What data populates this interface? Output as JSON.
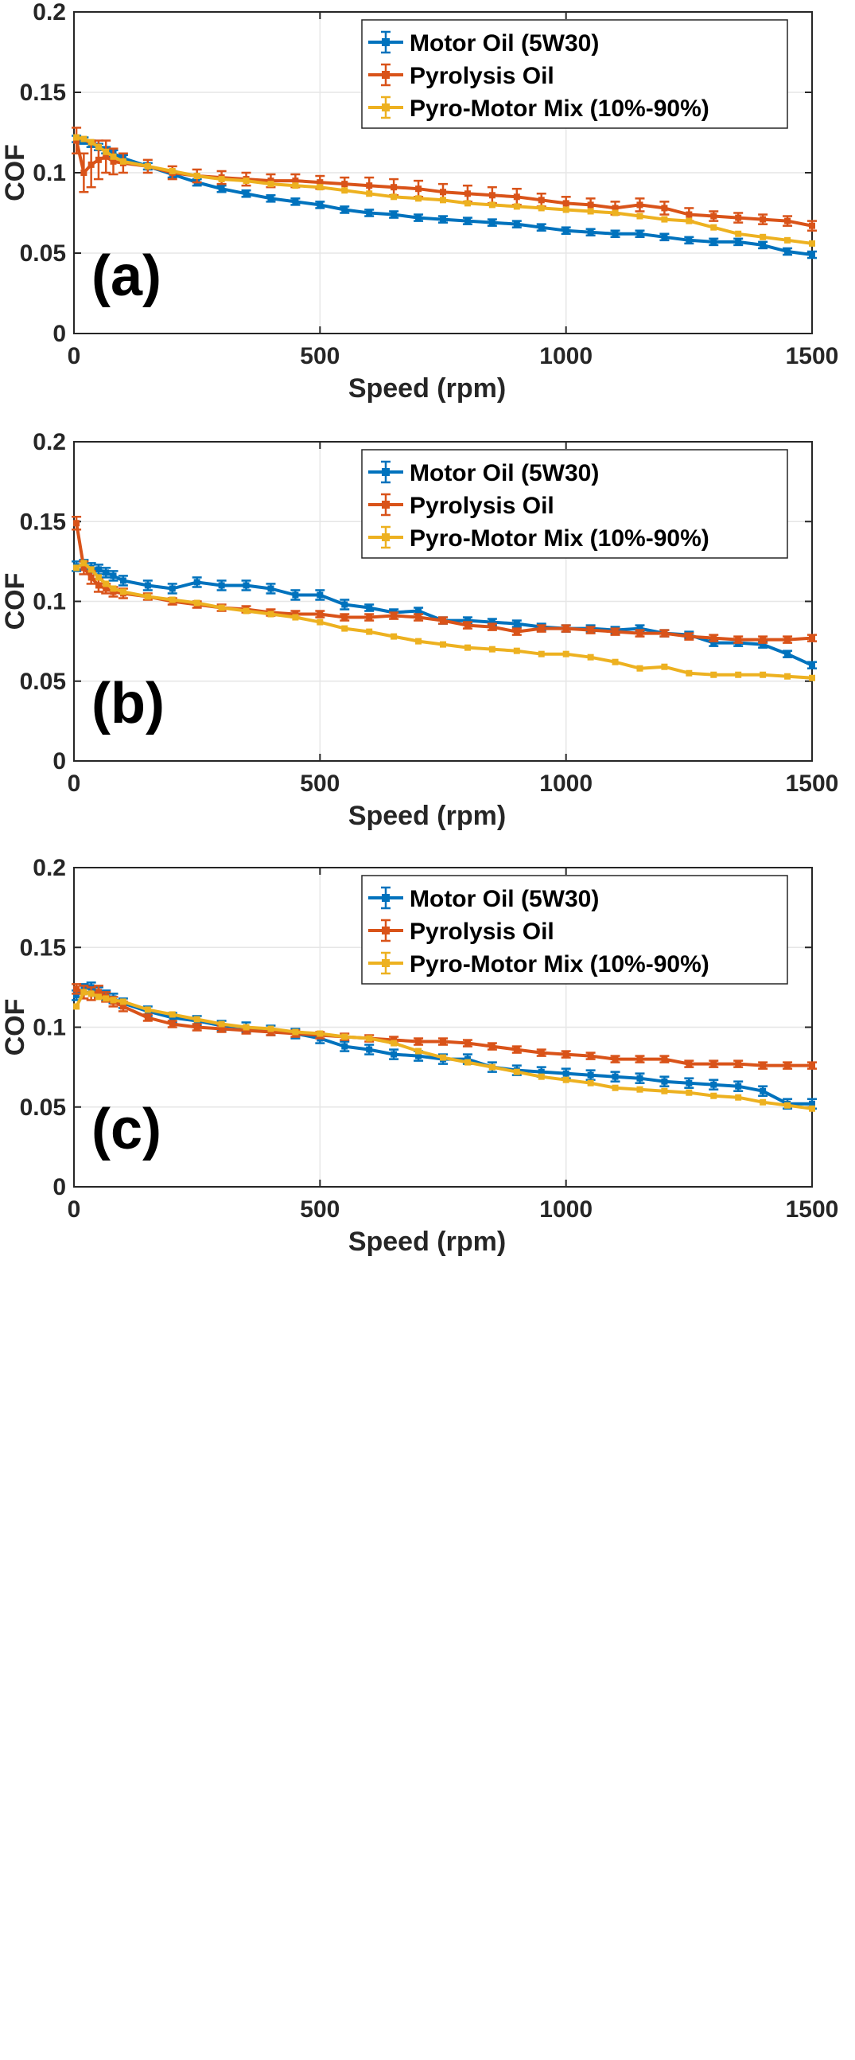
{
  "chart_data": [
    {
      "type": "line",
      "annotation": "(a)",
      "xlabel": "Speed (rpm)",
      "ylabel": "COF",
      "xlim": [
        0,
        1500
      ],
      "ylim": [
        0,
        0.2
      ],
      "xticks": [
        0,
        500,
        1000,
        1500
      ],
      "yticks": [
        0,
        0.05,
        0.1,
        0.15,
        0.2
      ],
      "grid": true,
      "legend_position": "top-right",
      "x": [
        5,
        20,
        35,
        50,
        65,
        80,
        100,
        150,
        200,
        250,
        300,
        350,
        400,
        450,
        500,
        550,
        600,
        650,
        700,
        750,
        800,
        850,
        900,
        950,
        1000,
        1050,
        1100,
        1150,
        1200,
        1250,
        1300,
        1350,
        1400,
        1450,
        1500
      ],
      "series": [
        {
          "name": "Motor Oil (5W30)",
          "color": "#0072BD",
          "values": [
            0.121,
            0.12,
            0.118,
            0.116,
            0.114,
            0.112,
            0.109,
            0.104,
            0.099,
            0.094,
            0.09,
            0.087,
            0.084,
            0.082,
            0.08,
            0.077,
            0.075,
            0.074,
            0.072,
            0.071,
            0.07,
            0.069,
            0.068,
            0.066,
            0.064,
            0.063,
            0.062,
            0.062,
            0.06,
            0.058,
            0.057,
            0.057,
            0.055,
            0.051,
            0.049
          ],
          "errors": [
            0.002,
            0.002,
            0.002,
            0.002,
            0.002,
            0.002,
            0.002,
            0.002,
            0.002,
            0.002,
            0.002,
            0.002,
            0.002,
            0.002,
            0.002,
            0.002,
            0.002,
            0.002,
            0.002,
            0.002,
            0.002,
            0.002,
            0.002,
            0.002,
            0.002,
            0.002,
            0.002,
            0.002,
            0.002,
            0.002,
            0.002,
            0.002,
            0.002,
            0.002,
            0.002
          ]
        },
        {
          "name": "Pyrolysis Oil",
          "color": "#D95319",
          "values": [
            0.12,
            0.1,
            0.105,
            0.108,
            0.11,
            0.107,
            0.106,
            0.104,
            0.1,
            0.098,
            0.097,
            0.096,
            0.095,
            0.095,
            0.094,
            0.093,
            0.092,
            0.091,
            0.09,
            0.088,
            0.087,
            0.086,
            0.085,
            0.083,
            0.081,
            0.08,
            0.078,
            0.08,
            0.078,
            0.074,
            0.073,
            0.072,
            0.071,
            0.07,
            0.067
          ],
          "errors": [
            0.008,
            0.012,
            0.014,
            0.012,
            0.01,
            0.008,
            0.006,
            0.004,
            0.004,
            0.004,
            0.004,
            0.004,
            0.004,
            0.004,
            0.004,
            0.004,
            0.005,
            0.005,
            0.005,
            0.005,
            0.005,
            0.005,
            0.005,
            0.004,
            0.004,
            0.004,
            0.004,
            0.004,
            0.004,
            0.004,
            0.003,
            0.003,
            0.003,
            0.003,
            0.003
          ]
        },
        {
          "name": "Pyro-Motor Mix (10%-90%)",
          "color": "#EDB120",
          "values": [
            0.122,
            0.121,
            0.119,
            0.116,
            0.113,
            0.11,
            0.107,
            0.104,
            0.101,
            0.098,
            0.096,
            0.095,
            0.093,
            0.092,
            0.091,
            0.089,
            0.087,
            0.085,
            0.084,
            0.083,
            0.081,
            0.08,
            0.079,
            0.078,
            0.077,
            0.076,
            0.075,
            0.073,
            0.071,
            0.07,
            0.066,
            0.062,
            0.06,
            0.058,
            0.056
          ]
        }
      ]
    },
    {
      "type": "line",
      "annotation": "(b)",
      "xlabel": "Speed (rpm)",
      "ylabel": "COF",
      "xlim": [
        0,
        1500
      ],
      "ylim": [
        0,
        0.2
      ],
      "xticks": [
        0,
        500,
        1000,
        1500
      ],
      "yticks": [
        0,
        0.05,
        0.1,
        0.15,
        0.2
      ],
      "grid": true,
      "legend_position": "top-right",
      "x": [
        5,
        20,
        35,
        50,
        65,
        80,
        100,
        150,
        200,
        250,
        300,
        350,
        400,
        450,
        500,
        550,
        600,
        650,
        700,
        750,
        800,
        850,
        900,
        950,
        1000,
        1050,
        1100,
        1150,
        1200,
        1250,
        1300,
        1350,
        1400,
        1450,
        1500
      ],
      "series": [
        {
          "name": "Motor Oil (5W30)",
          "color": "#0072BD",
          "values": [
            0.122,
            0.123,
            0.121,
            0.12,
            0.118,
            0.116,
            0.113,
            0.11,
            0.108,
            0.112,
            0.11,
            0.11,
            0.108,
            0.104,
            0.104,
            0.098,
            0.096,
            0.093,
            0.094,
            0.088,
            0.088,
            0.087,
            0.086,
            0.084,
            0.083,
            0.083,
            0.082,
            0.083,
            0.08,
            0.079,
            0.074,
            0.074,
            0.073,
            0.067,
            0.06
          ],
          "errors": [
            0.003,
            0.003,
            0.003,
            0.003,
            0.003,
            0.003,
            0.003,
            0.003,
            0.003,
            0.003,
            0.003,
            0.003,
            0.003,
            0.003,
            0.003,
            0.003,
            0.002,
            0.002,
            0.002,
            0.002,
            0.002,
            0.002,
            0.002,
            0.002,
            0.002,
            0.002,
            0.002,
            0.002,
            0.002,
            0.002,
            0.002,
            0.002,
            0.002,
            0.002,
            0.002
          ]
        },
        {
          "name": "Pyrolysis Oil",
          "color": "#D95319",
          "values": [
            0.149,
            0.121,
            0.115,
            0.11,
            0.108,
            0.106,
            0.105,
            0.103,
            0.1,
            0.098,
            0.096,
            0.095,
            0.093,
            0.092,
            0.092,
            0.09,
            0.09,
            0.091,
            0.09,
            0.088,
            0.085,
            0.084,
            0.081,
            0.083,
            0.083,
            0.082,
            0.081,
            0.08,
            0.08,
            0.078,
            0.077,
            0.076,
            0.076,
            0.076,
            0.077
          ],
          "errors": [
            0.004,
            0.004,
            0.004,
            0.004,
            0.003,
            0.003,
            0.003,
            0.002,
            0.002,
            0.002,
            0.002,
            0.002,
            0.002,
            0.002,
            0.002,
            0.002,
            0.002,
            0.002,
            0.002,
            0.002,
            0.002,
            0.002,
            0.002,
            0.002,
            0.002,
            0.002,
            0.002,
            0.002,
            0.002,
            0.002,
            0.002,
            0.002,
            0.002,
            0.002,
            0.002
          ]
        },
        {
          "name": "Pyro-Motor Mix (10%-90%)",
          "color": "#EDB120",
          "values": [
            0.121,
            0.124,
            0.12,
            0.115,
            0.111,
            0.108,
            0.106,
            0.103,
            0.101,
            0.099,
            0.096,
            0.094,
            0.092,
            0.09,
            0.087,
            0.083,
            0.081,
            0.078,
            0.075,
            0.073,
            0.071,
            0.07,
            0.069,
            0.067,
            0.067,
            0.065,
            0.062,
            0.058,
            0.059,
            0.055,
            0.054,
            0.054,
            0.054,
            0.053,
            0.052
          ]
        }
      ]
    },
    {
      "type": "line",
      "annotation": "(c)",
      "xlabel": "Speed (rpm)",
      "ylabel": "COF",
      "xlim": [
        0,
        1500
      ],
      "ylim": [
        0,
        0.2
      ],
      "xticks": [
        0,
        500,
        1000,
        1500
      ],
      "yticks": [
        0,
        0.05,
        0.1,
        0.15,
        0.2
      ],
      "grid": true,
      "legend_position": "top-right",
      "x": [
        5,
        20,
        35,
        50,
        65,
        80,
        100,
        150,
        200,
        250,
        300,
        350,
        400,
        450,
        500,
        550,
        600,
        650,
        700,
        750,
        800,
        850,
        900,
        950,
        1000,
        1050,
        1100,
        1150,
        1200,
        1250,
        1300,
        1350,
        1400,
        1450,
        1500
      ],
      "series": [
        {
          "name": "Motor Oil (5W30)",
          "color": "#0072BD",
          "values": [
            0.12,
            0.124,
            0.125,
            0.122,
            0.12,
            0.118,
            0.115,
            0.11,
            0.106,
            0.104,
            0.101,
            0.1,
            0.098,
            0.096,
            0.093,
            0.088,
            0.086,
            0.083,
            0.082,
            0.08,
            0.08,
            0.075,
            0.073,
            0.072,
            0.071,
            0.07,
            0.069,
            0.068,
            0.066,
            0.065,
            0.064,
            0.063,
            0.06,
            0.052,
            0.052
          ],
          "errors": [
            0.003,
            0.003,
            0.003,
            0.003,
            0.003,
            0.003,
            0.003,
            0.003,
            0.003,
            0.003,
            0.003,
            0.003,
            0.003,
            0.003,
            0.003,
            0.003,
            0.003,
            0.003,
            0.003,
            0.003,
            0.003,
            0.003,
            0.003,
            0.003,
            0.003,
            0.003,
            0.003,
            0.003,
            0.003,
            0.003,
            0.003,
            0.003,
            0.003,
            0.003,
            0.003
          ]
        },
        {
          "name": "Pyrolysis Oil",
          "color": "#D95319",
          "values": [
            0.124,
            0.122,
            0.121,
            0.122,
            0.119,
            0.116,
            0.113,
            0.106,
            0.102,
            0.1,
            0.099,
            0.098,
            0.097,
            0.096,
            0.095,
            0.094,
            0.093,
            0.092,
            0.091,
            0.091,
            0.09,
            0.088,
            0.086,
            0.084,
            0.083,
            0.082,
            0.08,
            0.08,
            0.08,
            0.077,
            0.077,
            0.077,
            0.076,
            0.076,
            0.076
          ],
          "errors": [
            0.003,
            0.004,
            0.004,
            0.004,
            0.003,
            0.003,
            0.003,
            0.002,
            0.002,
            0.002,
            0.002,
            0.002,
            0.002,
            0.002,
            0.002,
            0.002,
            0.002,
            0.002,
            0.002,
            0.002,
            0.002,
            0.002,
            0.002,
            0.002,
            0.002,
            0.002,
            0.002,
            0.002,
            0.002,
            0.002,
            0.002,
            0.002,
            0.002,
            0.002,
            0.002
          ]
        },
        {
          "name": "Pyro-Motor Mix (10%-90%)",
          "color": "#EDB120",
          "values": [
            0.113,
            0.122,
            0.121,
            0.119,
            0.118,
            0.117,
            0.116,
            0.111,
            0.108,
            0.105,
            0.102,
            0.1,
            0.099,
            0.097,
            0.096,
            0.094,
            0.093,
            0.09,
            0.085,
            0.081,
            0.078,
            0.075,
            0.072,
            0.069,
            0.067,
            0.065,
            0.062,
            0.061,
            0.06,
            0.059,
            0.057,
            0.056,
            0.053,
            0.051,
            0.049
          ]
        }
      ]
    }
  ]
}
